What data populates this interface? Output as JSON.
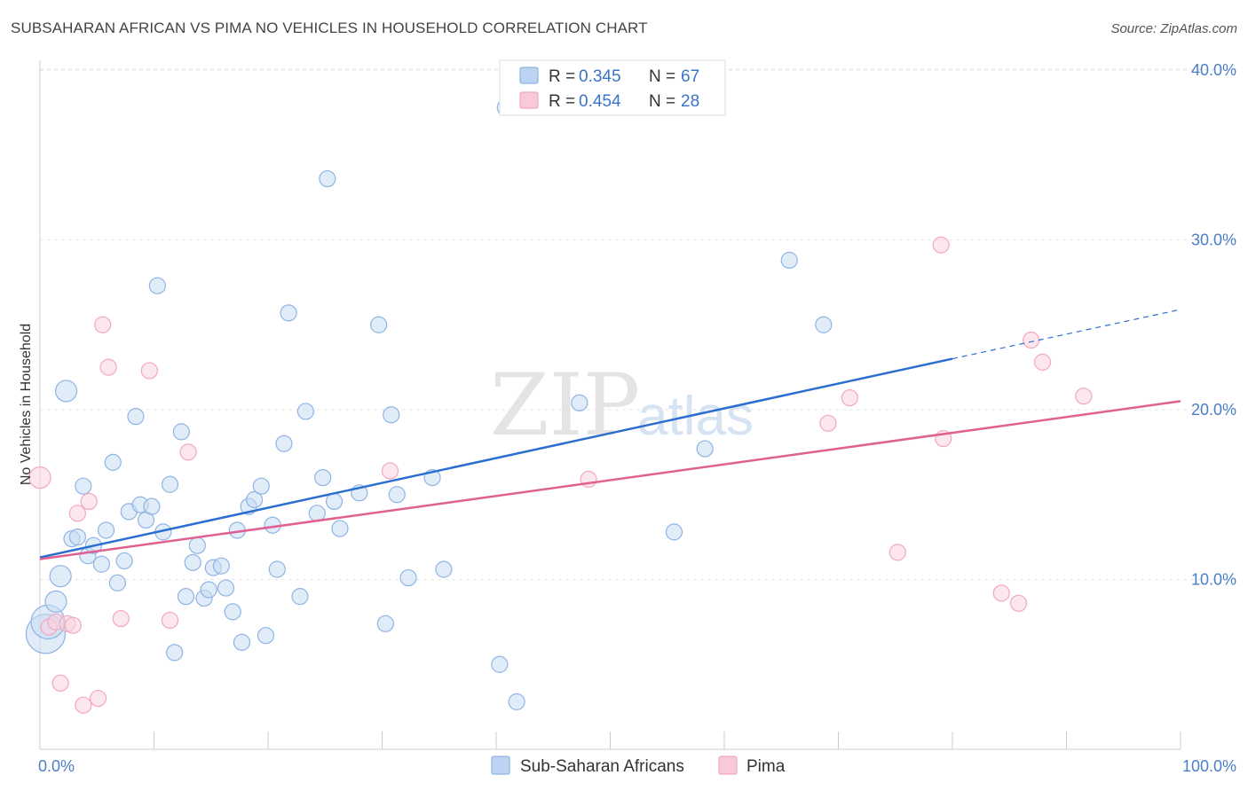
{
  "header": {
    "title": "SUBSAHARAN AFRICAN VS PIMA NO VEHICLES IN HOUSEHOLD CORRELATION CHART",
    "source": "Source: ZipAtlas.com"
  },
  "watermark": {
    "zip": "ZIP",
    "atlas": "atlas"
  },
  "legend": {
    "rows": [
      {
        "r_label": "R =",
        "r_value": "0.345",
        "n_label": "N =",
        "n_value": "67"
      },
      {
        "r_label": "R =",
        "r_value": "0.454",
        "n_label": "N =",
        "n_value": "28"
      }
    ]
  },
  "bottom_legend": [
    "Sub-Saharan Africans",
    "Pima"
  ],
  "chart_data": {
    "type": "scatter",
    "title": "SUBSAHARAN AFRICAN VS PIMA NO VEHICLES IN HOUSEHOLD CORRELATION CHART",
    "xlabel": "",
    "ylabel": "No Vehicles in Household",
    "xlim": [
      0,
      100
    ],
    "ylim": [
      0,
      40
    ],
    "x_tick_labels": [
      "0.0%",
      "100.0%"
    ],
    "y_ticks": [
      10,
      20,
      30,
      40
    ],
    "y_tick_labels": [
      "10.0%",
      "20.0%",
      "30.0%",
      "40.0%"
    ],
    "grid": true,
    "legend_position": "top-center",
    "colors": {
      "blue": "#8fb4e3",
      "blue_line": "#2a6fd0",
      "pink": "#f2a7bf",
      "pink_line": "#e06090"
    },
    "series": [
      {
        "name": "Sub-Saharan Africans",
        "R": 0.345,
        "N": 67,
        "trend": {
          "x": [
            0,
            80
          ],
          "y": [
            11.3,
            23.0
          ],
          "dashed_to": [
            100,
            25.9
          ]
        },
        "points": [
          {
            "x": 0.5,
            "y": 6.8,
            "s": 3
          },
          {
            "x": 0.7,
            "y": 7.5,
            "s": 2
          },
          {
            "x": 1.4,
            "y": 8.7,
            "s": 1
          },
          {
            "x": 1.8,
            "y": 10.2,
            "s": 1
          },
          {
            "x": 2.3,
            "y": 21.1,
            "s": 1
          },
          {
            "x": 2.8,
            "y": 12.4,
            "s": 0
          },
          {
            "x": 3.3,
            "y": 12.5,
            "s": 0
          },
          {
            "x": 3.8,
            "y": 15.5,
            "s": 0
          },
          {
            "x": 4.2,
            "y": 11.4,
            "s": 0
          },
          {
            "x": 4.7,
            "y": 12.0,
            "s": 0
          },
          {
            "x": 5.4,
            "y": 10.9,
            "s": 0
          },
          {
            "x": 5.8,
            "y": 12.9,
            "s": 0
          },
          {
            "x": 6.4,
            "y": 16.9,
            "s": 0
          },
          {
            "x": 6.8,
            "y": 9.8,
            "s": 0
          },
          {
            "x": 7.4,
            "y": 11.1,
            "s": 0
          },
          {
            "x": 7.8,
            "y": 14.0,
            "s": 0
          },
          {
            "x": 8.4,
            "y": 19.6,
            "s": 0
          },
          {
            "x": 8.8,
            "y": 14.4,
            "s": 0
          },
          {
            "x": 9.3,
            "y": 13.5,
            "s": 0
          },
          {
            "x": 9.8,
            "y": 14.3,
            "s": 0
          },
          {
            "x": 10.3,
            "y": 27.3,
            "s": 0
          },
          {
            "x": 10.8,
            "y": 12.8,
            "s": 0
          },
          {
            "x": 11.4,
            "y": 15.6,
            "s": 0
          },
          {
            "x": 11.8,
            "y": 5.7,
            "s": 0
          },
          {
            "x": 12.4,
            "y": 18.7,
            "s": 0
          },
          {
            "x": 12.8,
            "y": 9.0,
            "s": 0
          },
          {
            "x": 13.4,
            "y": 11.0,
            "s": 0
          },
          {
            "x": 13.8,
            "y": 12.0,
            "s": 0
          },
          {
            "x": 14.4,
            "y": 8.9,
            "s": 0
          },
          {
            "x": 14.8,
            "y": 9.4,
            "s": 0
          },
          {
            "x": 15.2,
            "y": 10.7,
            "s": 0
          },
          {
            "x": 15.9,
            "y": 10.8,
            "s": 0
          },
          {
            "x": 16.3,
            "y": 9.5,
            "s": 0
          },
          {
            "x": 16.9,
            "y": 8.1,
            "s": 0
          },
          {
            "x": 17.3,
            "y": 12.9,
            "s": 0
          },
          {
            "x": 17.7,
            "y": 6.3,
            "s": 0
          },
          {
            "x": 18.3,
            "y": 14.3,
            "s": 0
          },
          {
            "x": 18.8,
            "y": 14.7,
            "s": 0
          },
          {
            "x": 19.4,
            "y": 15.5,
            "s": 0
          },
          {
            "x": 19.8,
            "y": 6.7,
            "s": 0
          },
          {
            "x": 20.4,
            "y": 13.2,
            "s": 0
          },
          {
            "x": 20.8,
            "y": 10.6,
            "s": 0
          },
          {
            "x": 21.4,
            "y": 18.0,
            "s": 0
          },
          {
            "x": 21.8,
            "y": 25.7,
            "s": 0
          },
          {
            "x": 22.8,
            "y": 9.0,
            "s": 0
          },
          {
            "x": 23.3,
            "y": 19.9,
            "s": 0
          },
          {
            "x": 24.3,
            "y": 13.9,
            "s": 0
          },
          {
            "x": 24.8,
            "y": 16.0,
            "s": 0
          },
          {
            "x": 25.2,
            "y": 33.6,
            "s": 0
          },
          {
            "x": 25.8,
            "y": 14.6,
            "s": 0
          },
          {
            "x": 26.3,
            "y": 13.0,
            "s": 0
          },
          {
            "x": 28.0,
            "y": 15.1,
            "s": 0
          },
          {
            "x": 29.7,
            "y": 25.0,
            "s": 0
          },
          {
            "x": 30.3,
            "y": 7.4,
            "s": 0
          },
          {
            "x": 30.8,
            "y": 19.7,
            "s": 0
          },
          {
            "x": 31.3,
            "y": 15.0,
            "s": 0
          },
          {
            "x": 32.3,
            "y": 10.1,
            "s": 0
          },
          {
            "x": 34.4,
            "y": 16.0,
            "s": 0
          },
          {
            "x": 35.4,
            "y": 10.6,
            "s": 0
          },
          {
            "x": 40.3,
            "y": 5.0,
            "s": 0
          },
          {
            "x": 40.8,
            "y": 37.8,
            "s": 0
          },
          {
            "x": 41.8,
            "y": 2.8,
            "s": 0
          },
          {
            "x": 47.3,
            "y": 20.4,
            "s": 0
          },
          {
            "x": 55.6,
            "y": 12.8,
            "s": 0
          },
          {
            "x": 58.3,
            "y": 17.7,
            "s": 0
          },
          {
            "x": 65.7,
            "y": 28.8,
            "s": 0
          },
          {
            "x": 68.7,
            "y": 25.0,
            "s": 0
          }
        ]
      },
      {
        "name": "Pima",
        "R": 0.454,
        "N": 28,
        "trend": {
          "x": [
            0,
            100
          ],
          "y": [
            11.2,
            20.5
          ]
        },
        "points": [
          {
            "x": 0.0,
            "y": 16.0,
            "s": 1
          },
          {
            "x": 0.8,
            "y": 7.2,
            "s": 0
          },
          {
            "x": 1.4,
            "y": 7.5,
            "s": 0
          },
          {
            "x": 1.8,
            "y": 3.9,
            "s": 0
          },
          {
            "x": 2.4,
            "y": 7.4,
            "s": 0
          },
          {
            "x": 2.9,
            "y": 7.3,
            "s": 0
          },
          {
            "x": 3.3,
            "y": 13.9,
            "s": 0
          },
          {
            "x": 3.8,
            "y": 2.6,
            "s": 0
          },
          {
            "x": 4.3,
            "y": 14.6,
            "s": 0
          },
          {
            "x": 5.1,
            "y": 3.0,
            "s": 0
          },
          {
            "x": 5.5,
            "y": 25.0,
            "s": 0
          },
          {
            "x": 6.0,
            "y": 22.5,
            "s": 0
          },
          {
            "x": 7.1,
            "y": 7.7,
            "s": 0
          },
          {
            "x": 9.6,
            "y": 22.3,
            "s": 0
          },
          {
            "x": 11.4,
            "y": 7.6,
            "s": 0
          },
          {
            "x": 13.0,
            "y": 17.5,
            "s": 0
          },
          {
            "x": 30.7,
            "y": 16.4,
            "s": 0
          },
          {
            "x": 48.1,
            "y": 15.9,
            "s": 0
          },
          {
            "x": 69.1,
            "y": 19.2,
            "s": 0
          },
          {
            "x": 71.0,
            "y": 20.7,
            "s": 0
          },
          {
            "x": 75.2,
            "y": 11.6,
            "s": 0
          },
          {
            "x": 79.0,
            "y": 29.7,
            "s": 0
          },
          {
            "x": 79.2,
            "y": 18.3,
            "s": 0
          },
          {
            "x": 84.3,
            "y": 9.2,
            "s": 0
          },
          {
            "x": 85.8,
            "y": 8.6,
            "s": 0
          },
          {
            "x": 86.9,
            "y": 24.1,
            "s": 0
          },
          {
            "x": 87.9,
            "y": 22.8,
            "s": 0
          },
          {
            "x": 91.5,
            "y": 20.8,
            "s": 0
          }
        ]
      }
    ]
  }
}
